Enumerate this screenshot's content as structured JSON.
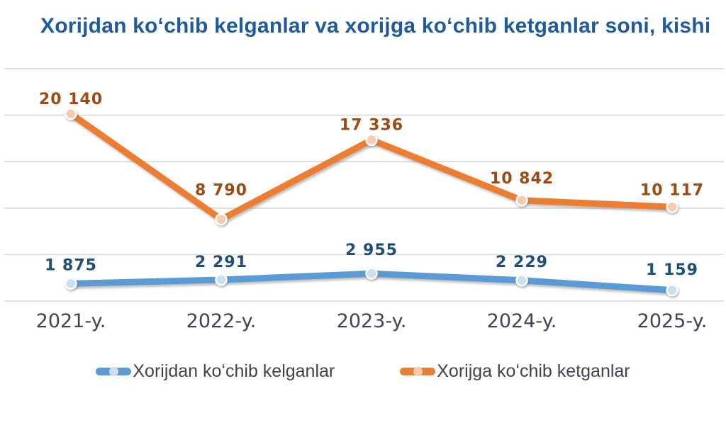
{
  "title": "Xorijdan koʻchib kelganlar va xorijga koʻchib ketganlar soni, kishi",
  "colors": {
    "title": "#1F5B9B",
    "gridline": "#DCDCDC",
    "axis_label": "#3F4450",
    "legend_text": "#3F4450",
    "background": "#FFFFFF"
  },
  "chart_data": {
    "type": "line",
    "title": "Xorijdan koʻchib kelganlar va xorijga koʻchib ketganlar soni, kishi",
    "categories": [
      "2021-y.",
      "2022-y.",
      "2023-y.",
      "2024-y.",
      "2025-y."
    ],
    "series": [
      {
        "name": "Xorijdan koʻchib kelganlar",
        "values": [
          1875,
          2291,
          2955,
          2229,
          1159
        ],
        "color": "#5B9BD5",
        "marker_fill": "#C9DFF2",
        "label_color": "#1F4E79"
      },
      {
        "name": "Xorijga koʻchib ketganlar",
        "values": [
          20140,
          8790,
          17336,
          10842,
          10117
        ],
        "color": "#ED7D31",
        "marker_fill": "#F8CBAD",
        "label_color": "#9C4A13"
      }
    ],
    "ylim": [
      0,
      25000
    ],
    "grid_step": 5000,
    "grid": true,
    "legend_position": "bottom",
    "data_labels": true,
    "number_format": "space-thousands",
    "label_dy": [
      [
        -19,
        -18,
        -26,
        -19,
        -22
      ],
      [
        -14,
        -34,
        -14,
        -24,
        -17
      ]
    ]
  }
}
